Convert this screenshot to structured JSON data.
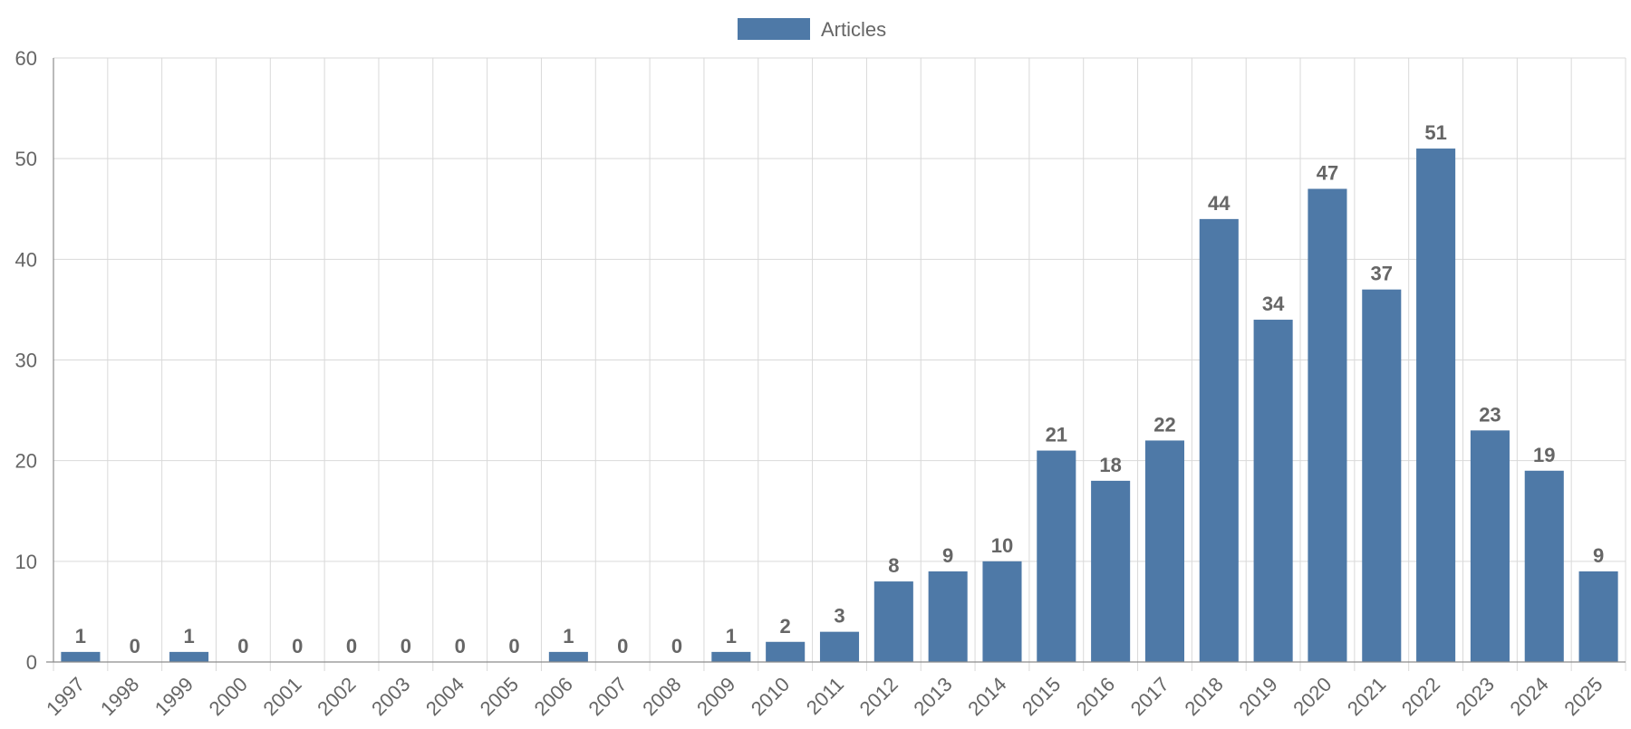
{
  "chart_data": {
    "type": "bar",
    "categories": [
      "1997",
      "1998",
      "1999",
      "2000",
      "2001",
      "2002",
      "2003",
      "2004",
      "2005",
      "2006",
      "2007",
      "2008",
      "2009",
      "2010",
      "2011",
      "2012",
      "2013",
      "2014",
      "2015",
      "2016",
      "2017",
      "2018",
      "2019",
      "2020",
      "2021",
      "2022",
      "2023",
      "2024",
      "2025"
    ],
    "series": [
      {
        "name": "Articles",
        "values": [
          1,
          0,
          1,
          0,
          0,
          0,
          0,
          0,
          0,
          1,
          0,
          0,
          1,
          2,
          3,
          8,
          9,
          10,
          21,
          18,
          22,
          44,
          34,
          47,
          37,
          51,
          23,
          19,
          9
        ],
        "color": "#4e79a7"
      }
    ],
    "ylim": [
      0,
      60
    ],
    "yticks": [
      0,
      10,
      20,
      30,
      40,
      50,
      60
    ],
    "grid": true,
    "legend_position": "top-center",
    "data_labels": true
  }
}
